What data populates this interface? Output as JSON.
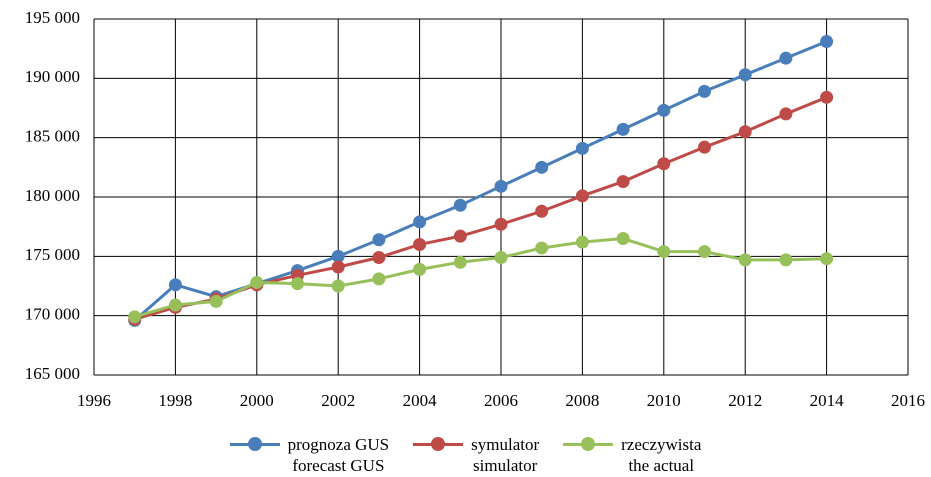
{
  "chart_data": {
    "type": "line",
    "x": [
      1997,
      1998,
      1999,
      2000,
      2001,
      2002,
      2003,
      2004,
      2005,
      2006,
      2007,
      2008,
      2009,
      2010,
      2011,
      2012,
      2013,
      2014
    ],
    "series": [
      {
        "name": "prognoza GUS\nforecast GUS",
        "color": "#4a7ebb",
        "values": [
          169600,
          172600,
          171600,
          172700,
          173800,
          175000,
          176400,
          177900,
          179300,
          180900,
          182500,
          184100,
          185700,
          187300,
          188900,
          190300,
          191700,
          193100
        ]
      },
      {
        "name": "symulator\nsimulator",
        "color": "#be4b48",
        "values": [
          169700,
          170700,
          171400,
          172600,
          173400,
          174100,
          174900,
          176000,
          176700,
          177700,
          178800,
          180100,
          181300,
          182800,
          184200,
          185500,
          187000,
          188400
        ]
      },
      {
        "name": "rzeczywista\nthe actual",
        "color": "#98c05a",
        "values": [
          169900,
          170900,
          171200,
          172800,
          172700,
          172500,
          173100,
          173900,
          174500,
          174900,
          175700,
          176200,
          176500,
          175400,
          175400,
          174700,
          174700,
          174800
        ]
      }
    ],
    "xlim": [
      1996,
      2016
    ],
    "xticks": [
      1996,
      1998,
      2000,
      2002,
      2004,
      2006,
      2008,
      2010,
      2012,
      2014,
      2016
    ],
    "ylim": [
      165000,
      195000
    ],
    "yticks": [
      {
        "value": 165000,
        "label": "165 000"
      },
      {
        "value": 170000,
        "label": "170 000"
      },
      {
        "value": 175000,
        "label": "175 000"
      },
      {
        "value": 180000,
        "label": "180 000"
      },
      {
        "value": 185000,
        "label": "185 000"
      },
      {
        "value": 190000,
        "label": "190 000"
      },
      {
        "value": 195000,
        "label": "195 000"
      }
    ],
    "grid": true,
    "legend": "bottom"
  }
}
